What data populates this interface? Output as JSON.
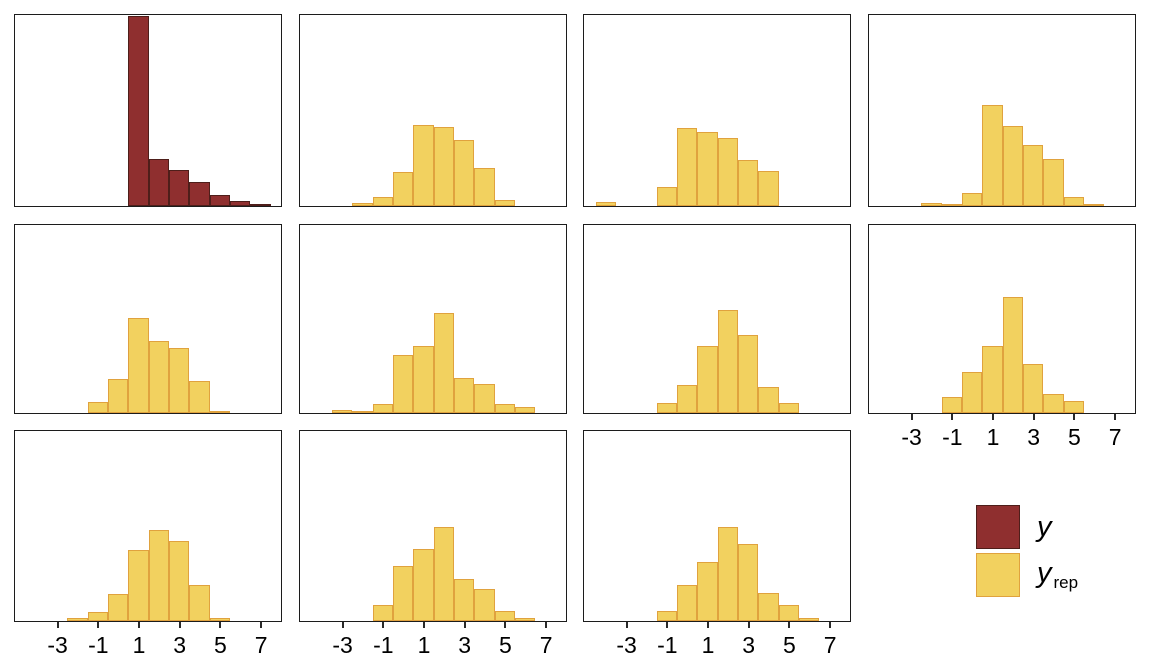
{
  "chart_data": {
    "type": "bar",
    "subtype": "histogram-grid",
    "description": "Posterior predictive check: grid of 11 histograms comparing observed data y (dark red, top-left panel) with 10 replicated datasets y_rep (yellow panels); no axis titles, y axes unlabeled",
    "x_ticks": [
      -3,
      -1,
      1,
      3,
      5,
      7
    ],
    "x_range": [
      -5.1,
      8.1
    ],
    "bin_width": 1,
    "grid": "off",
    "legend_position": "bottom-right",
    "colors": {
      "y_fill": "#8F2F2F",
      "y_stroke": "#4E1E1A",
      "yrep_fill": "#F2D15F",
      "yrep_stroke": "#E0A23E",
      "panel_border": "#1C1C1C"
    },
    "legend": {
      "y_label": "y",
      "yrep_label_base": "y",
      "yrep_label_sub": "rep"
    },
    "panels": [
      {
        "row": 0,
        "col": 0,
        "series": "y",
        "x_axis": false,
        "bars": [
          [
            1,
            1.0
          ],
          [
            2,
            0.245
          ],
          [
            3,
            0.19
          ],
          [
            4,
            0.125
          ],
          [
            5,
            0.06
          ],
          [
            6,
            0.025
          ],
          [
            7,
            0.01
          ]
        ]
      },
      {
        "row": 0,
        "col": 1,
        "series": "y_rep",
        "x_axis": false,
        "bars": [
          [
            -2,
            0.017
          ],
          [
            -1,
            0.05
          ],
          [
            0,
            0.18
          ],
          [
            1,
            0.425
          ],
          [
            2,
            0.415
          ],
          [
            3,
            0.35
          ],
          [
            4,
            0.2
          ],
          [
            5,
            0.03
          ]
        ]
      },
      {
        "row": 0,
        "col": 2,
        "series": "y_rep",
        "x_axis": false,
        "bars": [
          [
            -4,
            0.02
          ],
          [
            -1,
            0.1
          ],
          [
            0,
            0.41
          ],
          [
            1,
            0.39
          ],
          [
            2,
            0.36
          ],
          [
            3,
            0.24
          ],
          [
            4,
            0.185
          ]
        ]
      },
      {
        "row": 0,
        "col": 3,
        "series": "y_rep",
        "x_axis": false,
        "bars": [
          [
            -2,
            0.014
          ],
          [
            -1,
            0.01
          ],
          [
            0,
            0.07
          ],
          [
            1,
            0.53
          ],
          [
            2,
            0.42
          ],
          [
            3,
            0.32
          ],
          [
            4,
            0.25
          ],
          [
            5,
            0.05
          ],
          [
            6,
            0.01
          ]
        ]
      },
      {
        "row": 1,
        "col": 0,
        "series": "y_rep",
        "x_axis": false,
        "bars": [
          [
            -1,
            0.06
          ],
          [
            0,
            0.18
          ],
          [
            1,
            0.51
          ],
          [
            2,
            0.385
          ],
          [
            3,
            0.35
          ],
          [
            4,
            0.17
          ],
          [
            5,
            0.01
          ]
        ]
      },
      {
        "row": 1,
        "col": 1,
        "series": "y_rep",
        "x_axis": false,
        "bars": [
          [
            -3,
            0.014
          ],
          [
            -2,
            0.009
          ],
          [
            -1,
            0.05
          ],
          [
            0,
            0.31
          ],
          [
            1,
            0.36
          ],
          [
            2,
            0.535
          ],
          [
            3,
            0.185
          ],
          [
            4,
            0.154
          ],
          [
            5,
            0.047
          ],
          [
            6,
            0.033
          ]
        ]
      },
      {
        "row": 1,
        "col": 2,
        "series": "y_rep",
        "x_axis": false,
        "bars": [
          [
            -1,
            0.052
          ],
          [
            0,
            0.152
          ],
          [
            1,
            0.36
          ],
          [
            2,
            0.55
          ],
          [
            3,
            0.415
          ],
          [
            4,
            0.14
          ],
          [
            5,
            0.052
          ]
        ]
      },
      {
        "row": 1,
        "col": 3,
        "series": "y_rep",
        "x_axis": true,
        "bars": [
          [
            -1,
            0.085
          ],
          [
            0,
            0.22
          ],
          [
            1,
            0.36
          ],
          [
            2,
            0.62
          ],
          [
            3,
            0.26
          ],
          [
            4,
            0.1
          ],
          [
            5,
            0.064
          ]
        ]
      },
      {
        "row": 2,
        "col": 0,
        "series": "y_rep",
        "x_axis": true,
        "bars": [
          [
            -2,
            0.015
          ],
          [
            -1,
            0.05
          ],
          [
            0,
            0.145
          ],
          [
            1,
            0.375
          ],
          [
            2,
            0.48
          ],
          [
            3,
            0.425
          ],
          [
            4,
            0.19
          ],
          [
            5,
            0.015
          ]
        ]
      },
      {
        "row": 2,
        "col": 1,
        "series": "y_rep",
        "x_axis": true,
        "bars": [
          [
            -1,
            0.086
          ],
          [
            0,
            0.29
          ],
          [
            1,
            0.38
          ],
          [
            2,
            0.5
          ],
          [
            3,
            0.22
          ],
          [
            4,
            0.17
          ],
          [
            5,
            0.052
          ],
          [
            6,
            0.017
          ]
        ]
      },
      {
        "row": 2,
        "col": 2,
        "series": "y_rep",
        "x_axis": true,
        "bars": [
          [
            -1,
            0.052
          ],
          [
            0,
            0.19
          ],
          [
            1,
            0.31
          ],
          [
            2,
            0.5
          ],
          [
            3,
            0.41
          ],
          [
            4,
            0.15
          ],
          [
            5,
            0.083
          ],
          [
            6,
            0.017
          ]
        ]
      }
    ]
  }
}
